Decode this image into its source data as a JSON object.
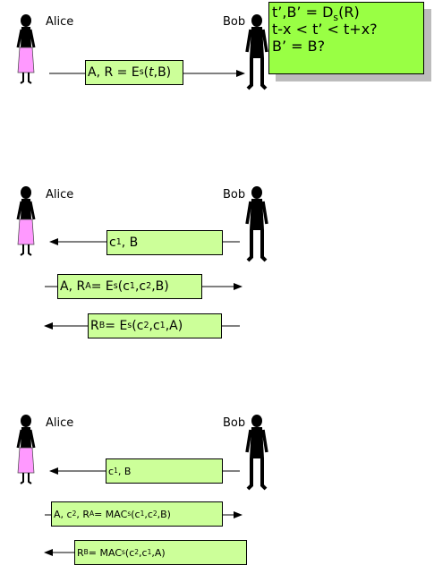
{
  "panel1": {
    "alice": "Alice",
    "bob": "Bob",
    "message": {
      "a": "A, R = E",
      "s": "s",
      "open": "(",
      "t": "t",
      "close": ",B)"
    },
    "check": {
      "line1_a": "t’,B’ = D",
      "line1_s": "s",
      "line1_b": "(R)",
      "line2": "t-x < t’ < t+x?",
      "line3": "B’ = B?"
    }
  },
  "panel2": {
    "alice": "Alice",
    "bob": "Bob",
    "msg1": {
      "c": "c",
      "one": "1",
      "rest": ", B"
    },
    "msg2": {
      "a": "A, R",
      "A": "A",
      "eq": " = E",
      "s": "s",
      "args_a": "(c",
      "one": "1",
      "comma": ",c",
      "two": "2",
      "end": ",B)"
    },
    "msg3": {
      "r": "R",
      "B": "B",
      "eq": " = E",
      "s": "s",
      "args_a": "(c",
      "two": "2",
      "comma": ",c",
      "one": "1",
      "end": ",A)"
    }
  },
  "panel3": {
    "alice": "Alice",
    "bob": "Bob",
    "msg1": {
      "c": "c",
      "one": "1",
      "rest": ", B"
    },
    "msg2": {
      "a": "A, c",
      "two": "2",
      "mid": ", R",
      "A": "A",
      "eq": " = MAC",
      "s": "s",
      "args_a": "(c",
      "one": "1",
      "comma": ",c",
      "two_b": "2",
      "end": ",B)"
    },
    "msg3": {
      "r": "R",
      "B": "B",
      "eq": " = MAC",
      "s": "s",
      "args_a": "(c",
      "two": "2",
      "comma": ",c",
      "one": "1",
      "end": ",A)"
    }
  },
  "colors": {
    "box": "#ccff99",
    "note": "#99ff44",
    "dress": "#ff99ff",
    "figure": "#000000",
    "shadow": "#bcbcbc"
  }
}
